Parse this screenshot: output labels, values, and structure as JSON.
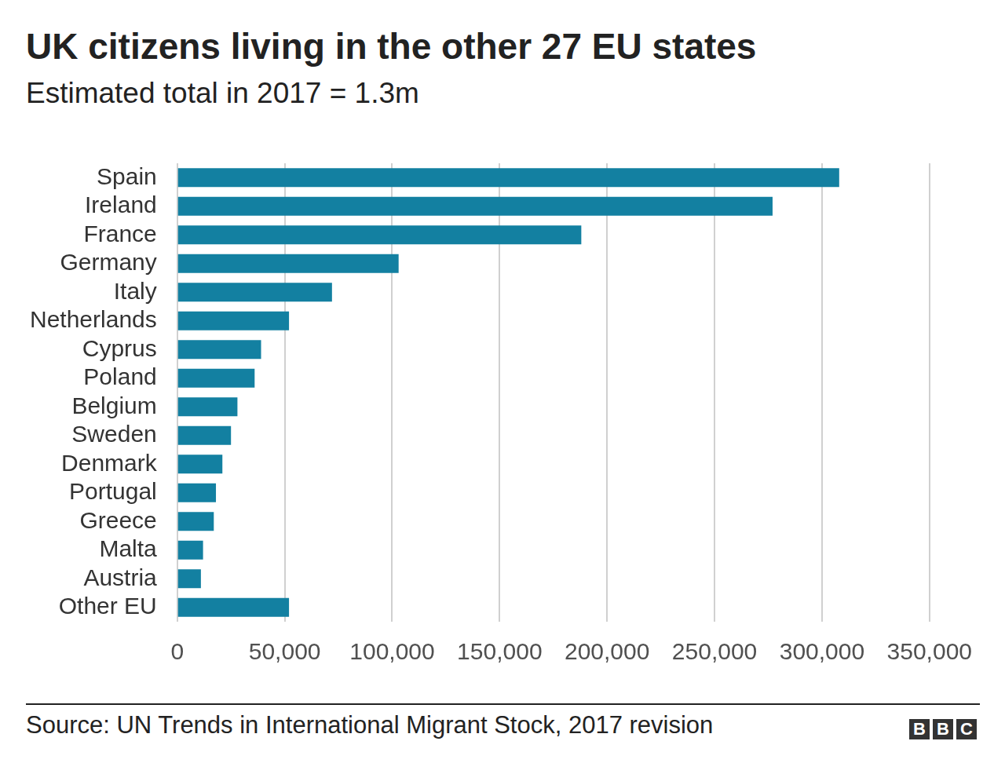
{
  "chart_data": {
    "type": "bar",
    "orientation": "horizontal",
    "title": "UK citizens living in the other 27 EU states",
    "subtitle": "Estimated total in 2017 = 1.3m",
    "categories": [
      "Spain",
      "Ireland",
      "France",
      "Germany",
      "Italy",
      "Netherlands",
      "Cyprus",
      "Poland",
      "Belgium",
      "Sweden",
      "Denmark",
      "Portugal",
      "Greece",
      "Malta",
      "Austria",
      "Other EU"
    ],
    "values": [
      308000,
      277000,
      188000,
      103000,
      72000,
      52000,
      39000,
      36000,
      28000,
      25000,
      21000,
      18000,
      17000,
      12000,
      11000,
      52000
    ],
    "color": "#1380a1",
    "xlim": [
      0,
      350000
    ],
    "xticks": [
      0,
      {
        "value": 50000,
        "label": "50,000"
      },
      {
        "value": 100000,
        "label": "100,000"
      },
      {
        "value": 150000,
        "label": "150,000"
      },
      {
        "value": 200000,
        "label": "200,000"
      },
      {
        "value": 250000,
        "label": "250,000"
      },
      {
        "value": 300000,
        "label": "300,000"
      },
      {
        "value": 350000,
        "label": "350,000"
      }
    ],
    "grid": true,
    "data_labels": false,
    "source": "Source: UN Trends in International Migrant Stock, 2017 revision",
    "logo": "BBC"
  }
}
